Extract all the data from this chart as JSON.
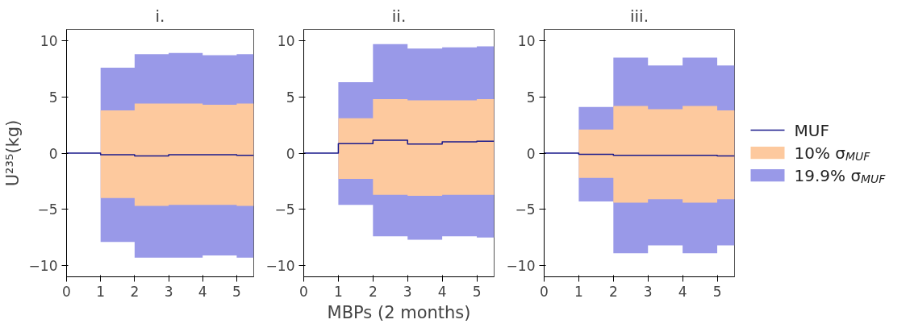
{
  "chart_data": [
    {
      "type": "step",
      "title": "i.",
      "ylabel": "U²³⁵(kg)",
      "x": [
        0,
        1,
        2,
        3,
        4,
        5,
        5.5
      ],
      "xlim": [
        0,
        5.5
      ],
      "ylim": [
        -11,
        11
      ],
      "xticks": [
        0,
        1,
        2,
        3,
        4,
        5
      ],
      "yticks": [
        -10,
        -5,
        0,
        5,
        10
      ],
      "grid": false,
      "legend": false,
      "series": [
        {
          "color": "#1a1a8c",
          "values": [
            0,
            -0.15,
            -0.25,
            -0.15,
            -0.15,
            -0.2,
            -0.2
          ]
        },
        {
          "color": "#fdc99e",
          "values": [
            null,
            null,
            null,
            null,
            null,
            null,
            null
          ],
          "lower": [
            0,
            -4.0,
            -4.7,
            -4.6,
            -4.6,
            -4.7,
            -4.7
          ],
          "upper": [
            0,
            3.8,
            4.4,
            4.4,
            4.3,
            4.4,
            4.4
          ]
        },
        {
          "color": "#9999e8",
          "values": [
            null,
            null,
            null,
            null,
            null,
            null,
            null
          ],
          "lower": [
            0,
            -7.9,
            -9.3,
            -9.3,
            -9.1,
            -9.3,
            -9.3
          ],
          "upper": [
            0,
            7.6,
            8.8,
            8.9,
            8.7,
            8.8,
            8.8
          ]
        }
      ]
    },
    {
      "type": "step",
      "title": "ii.",
      "xlabel": "MBPs (2 months)",
      "x": [
        0,
        1,
        2,
        3,
        4,
        5,
        5.5
      ],
      "xlim": [
        0,
        5.5
      ],
      "ylim": [
        -11,
        11
      ],
      "xticks": [
        0,
        1,
        2,
        3,
        4,
        5
      ],
      "yticks": [
        -10,
        -5,
        0,
        5,
        10
      ],
      "grid": false,
      "legend": false,
      "series": [
        {
          "color": "#1a1a8c",
          "values": [
            0,
            0.85,
            1.15,
            0.8,
            1.0,
            1.05,
            1.05
          ]
        },
        {
          "color": "#fdc99e",
          "values": [
            null,
            null,
            null,
            null,
            null,
            null,
            null
          ],
          "lower": [
            0,
            -2.3,
            -3.7,
            -3.8,
            -3.7,
            -3.7,
            -3.7
          ],
          "upper": [
            0,
            3.1,
            4.8,
            4.7,
            4.7,
            4.8,
            4.8
          ]
        },
        {
          "color": "#9999e8",
          "values": [
            null,
            null,
            null,
            null,
            null,
            null,
            null
          ],
          "lower": [
            0,
            -4.6,
            -7.4,
            -7.7,
            -7.4,
            -7.5,
            -7.5
          ],
          "upper": [
            0,
            6.3,
            9.7,
            9.3,
            9.4,
            9.5,
            9.5
          ]
        }
      ]
    },
    {
      "type": "step",
      "title": "iii.",
      "x": [
        0,
        1,
        2,
        3,
        4,
        5,
        5.5
      ],
      "xlim": [
        0,
        5.5
      ],
      "ylim": [
        -11,
        11
      ],
      "xticks": [
        0,
        1,
        2,
        3,
        4,
        5
      ],
      "yticks": [
        -10,
        -5,
        0,
        5,
        10
      ],
      "grid": false,
      "legend": "right",
      "series": [
        {
          "name": "MUF",
          "color": "#1a1a8c",
          "values": [
            0,
            -0.1,
            -0.2,
            -0.2,
            -0.2,
            -0.25,
            -0.25
          ]
        },
        {
          "name": "10% σ$_{MUF}$",
          "color": "#fdc99e",
          "values": [
            null,
            null,
            null,
            null,
            null,
            null,
            null
          ],
          "lower": [
            0,
            -2.2,
            -4.4,
            -4.1,
            -4.4,
            -4.1,
            -4.1
          ],
          "upper": [
            0,
            2.1,
            4.2,
            3.9,
            4.2,
            3.8,
            3.8
          ]
        },
        {
          "name": "19.9% σ$_{MUF}$",
          "color": "#9999e8",
          "values": [
            null,
            null,
            null,
            null,
            null,
            null,
            null
          ],
          "lower": [
            0,
            -4.3,
            -8.9,
            -8.2,
            -8.9,
            -8.2,
            -8.2
          ],
          "upper": [
            0,
            4.1,
            8.5,
            7.8,
            8.5,
            7.8,
            7.8
          ]
        }
      ]
    }
  ]
}
